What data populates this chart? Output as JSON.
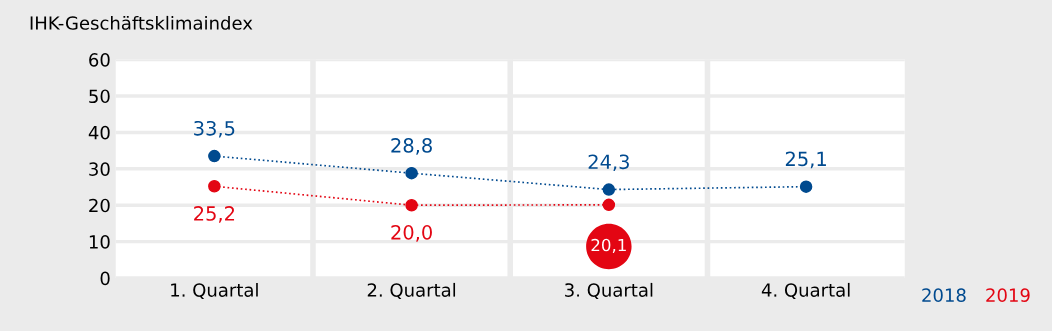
{
  "chart_data": {
    "type": "line",
    "ylabel": "IHK-Geschäftsklimaindex",
    "categories": [
      "1. Quartal",
      "2. Quartal",
      "3. Quartal",
      "4. Quartal"
    ],
    "series": [
      {
        "name": "2018",
        "color": "#004a8f",
        "values": [
          33.5,
          28.8,
          24.3,
          25.1
        ],
        "value_labels": [
          "33,5",
          "28,8",
          "24,3",
          "25,1"
        ]
      },
      {
        "name": "2019",
        "color": "#e30613",
        "values": [
          25.2,
          20.0,
          20.1,
          null
        ],
        "value_labels": [
          "25,2",
          "20,0",
          "20,1",
          null
        ]
      }
    ],
    "ylim": [
      0,
      60
    ],
    "yticks": [
      0,
      10,
      20,
      30,
      40,
      50,
      60
    ],
    "grid": "y",
    "legend": "bottom right",
    "marker": "circle",
    "line_style": "dotted"
  }
}
